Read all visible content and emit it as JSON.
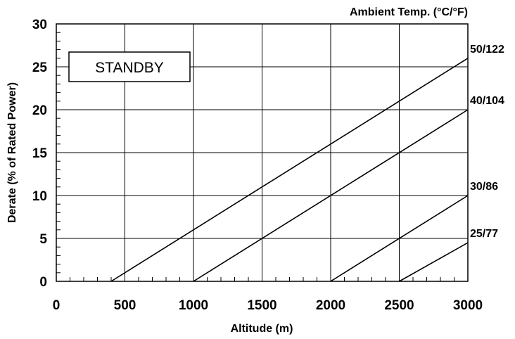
{
  "chart_data": {
    "type": "line",
    "xlabel": "Altitude (m)",
    "ylabel": "Derate (% of Rated Power)",
    "legend_title": "Ambient Temp. (°C/°F)",
    "annotation": "STANDBY",
    "xlim": [
      0,
      3000
    ],
    "ylim": [
      0,
      30
    ],
    "x_ticks": [
      0,
      500,
      1000,
      1500,
      2000,
      2500,
      3000
    ],
    "y_ticks": [
      0,
      5,
      10,
      15,
      20,
      25,
      30
    ],
    "grid": true,
    "series": [
      {
        "name": "50/122",
        "x": [
          400,
          3000
        ],
        "y": [
          0,
          26
        ]
      },
      {
        "name": "40/104",
        "x": [
          1000,
          3000
        ],
        "y": [
          0,
          20
        ]
      },
      {
        "name": "30/86",
        "x": [
          2000,
          3000
        ],
        "y": [
          0,
          10
        ]
      },
      {
        "name": "25/77",
        "x": [
          2500,
          3000
        ],
        "y": [
          0,
          4.5
        ]
      }
    ]
  }
}
